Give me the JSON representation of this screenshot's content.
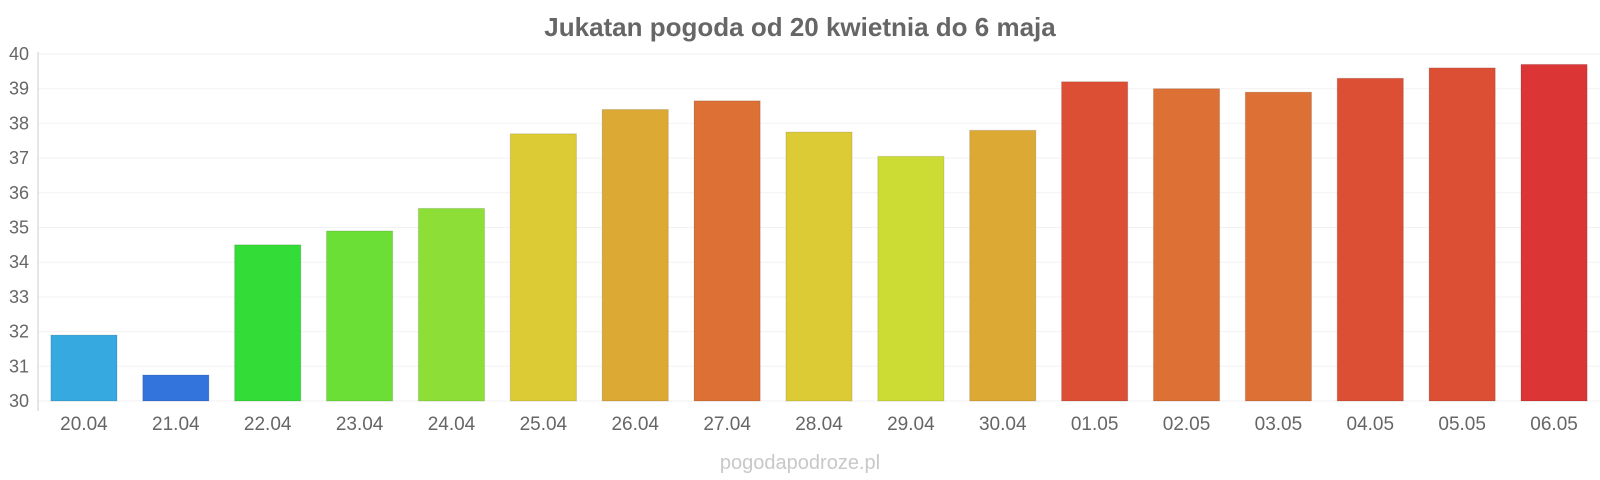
{
  "chart_data": {
    "type": "bar",
    "title": "Jukatan pogoda od 20 kwietnia do 6 maja",
    "xlabel": "",
    "ylabel": "",
    "ylim": [
      30,
      40
    ],
    "yticks": [
      30,
      31,
      32,
      33,
      34,
      35,
      36,
      37,
      38,
      39,
      40
    ],
    "grid": true,
    "categories": [
      "20.04",
      "21.04",
      "22.04",
      "23.04",
      "24.04",
      "25.04",
      "26.04",
      "27.04",
      "28.04",
      "29.04",
      "30.04",
      "01.05",
      "02.05",
      "03.05",
      "04.05",
      "05.05",
      "06.05"
    ],
    "values": [
      31.9,
      30.75,
      34.5,
      34.9,
      35.55,
      37.7,
      38.4,
      38.65,
      37.75,
      37.05,
      37.8,
      39.2,
      39.0,
      38.9,
      39.3,
      39.6,
      39.7
    ],
    "colors": [
      "#36a9e0",
      "#3374dc",
      "#33dc37",
      "#6cdf37",
      "#8ddf37",
      "#dccb35",
      "#dca935",
      "#dc7035",
      "#dccb35",
      "#cddc35",
      "#dca935",
      "#dc4f35",
      "#dc7035",
      "#dc7035",
      "#dc4f35",
      "#dc4f35",
      "#dc3535"
    ]
  },
  "watermark": "pogodapodroze.pl"
}
